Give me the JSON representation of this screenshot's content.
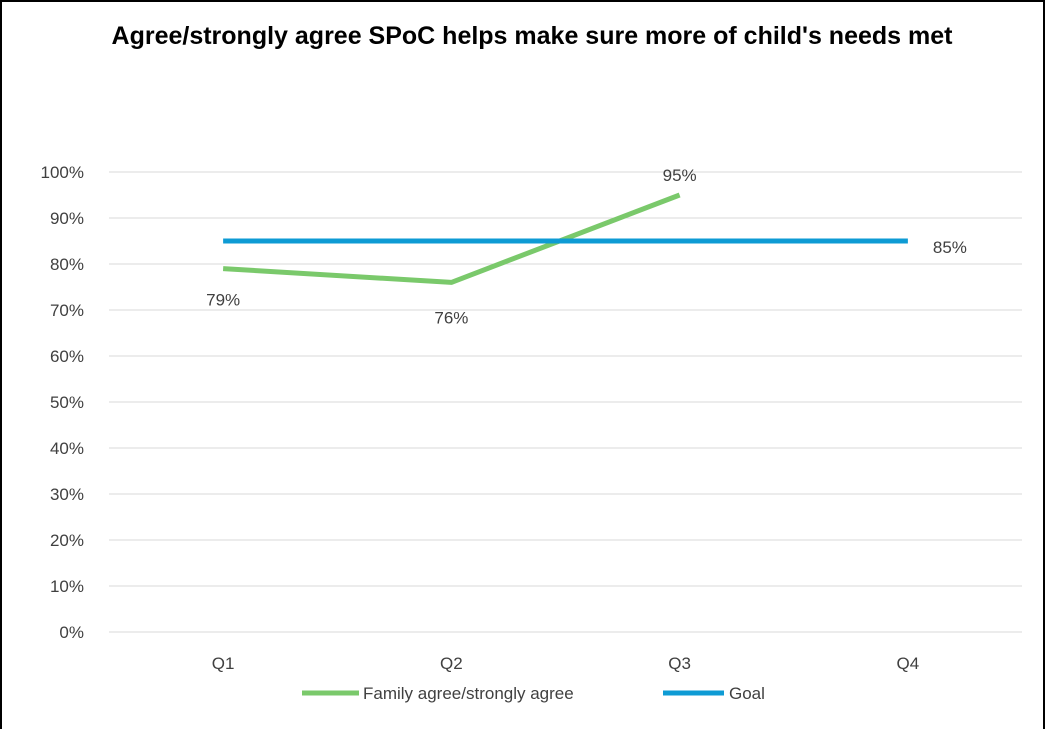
{
  "chart_data": {
    "type": "line",
    "title": "Agree/strongly agree SPoC helps make sure more of child's needs met",
    "xlabel": "",
    "ylabel": "",
    "categories": [
      "Q1",
      "Q2",
      "Q3",
      "Q4"
    ],
    "ylim": [
      0,
      1
    ],
    "y_ticks": [
      "0%",
      "10%",
      "20%",
      "30%",
      "40%",
      "50%",
      "60%",
      "70%",
      "80%",
      "90%",
      "100%"
    ],
    "grid": true,
    "legend_position": "bottom",
    "series": [
      {
        "name": "Family agree/strongly agree",
        "color": "#7ac96b",
        "values": [
          0.79,
          0.76,
          0.95,
          null
        ],
        "data_labels": [
          "79%",
          "76%",
          "95%",
          null
        ]
      },
      {
        "name": "Goal",
        "color": "#0e9bd4",
        "values": [
          0.85,
          0.85,
          0.85,
          0.85
        ],
        "data_labels": [
          null,
          null,
          null,
          "85%"
        ]
      }
    ]
  }
}
